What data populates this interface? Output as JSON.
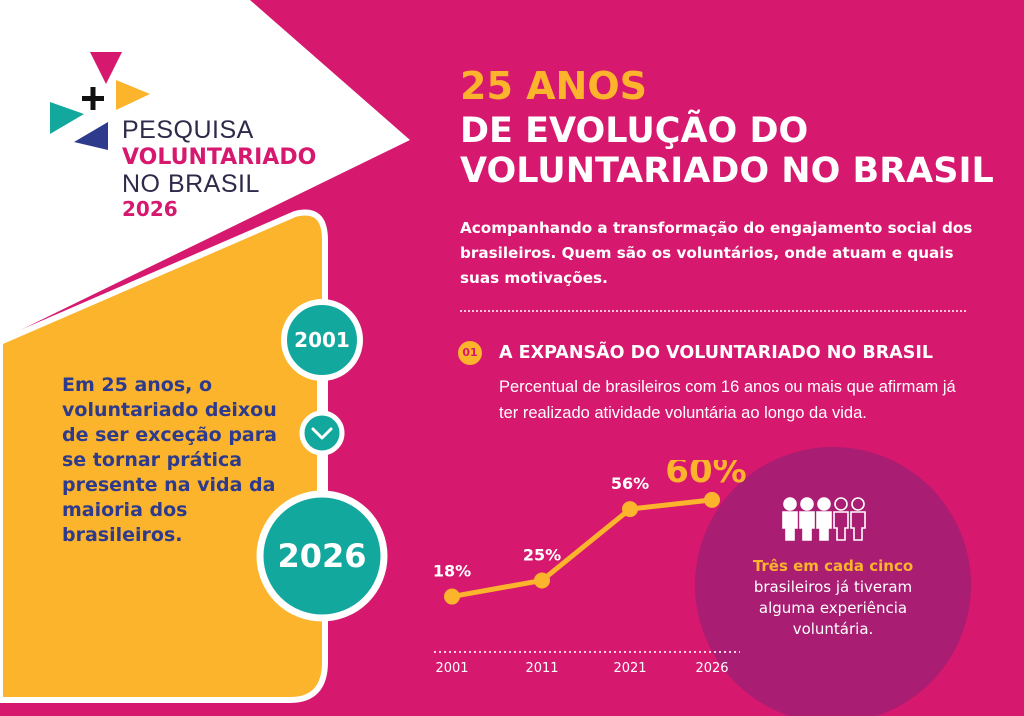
{
  "colors": {
    "background": "#d6186e",
    "yellow": "#fbb42c",
    "teal": "#13a89e",
    "navy": "#2e3a8c",
    "dark_circle": "#a91d73",
    "white": "#ffffff"
  },
  "logo": {
    "line1": "PESQUISA",
    "line2": "VOLUNTARIADO",
    "line3": "NO BRASIL",
    "year": "2026",
    "icon": "plus-triangles-logo-icon"
  },
  "side": {
    "text": "Em 25 anos, o voluntariado deixou de ser exceção para se tornar prática presente na vida da maioria dos brasileiros."
  },
  "timeline": {
    "start": "2001",
    "end": "2026",
    "arrow_icon": "chevron-down-icon"
  },
  "title": {
    "year_line": "25 ANOS",
    "line2": "DE EVOLUÇÃO DO",
    "line3": "VOLUNTARIADO NO BRASIL"
  },
  "intro": "Acompanhando a transformação do engajamento social dos brasileiros. Quem são os voluntários, onde atuam e quais suas motivações.",
  "section": {
    "number": "01",
    "title": "A EXPANSÃO DO VOLUNTARIADO NO BRASIL",
    "description": "Percentual de brasileiros com 16 anos ou mais que afirmam já ter realizado atividade voluntária ao longo da vida."
  },
  "chart_data": {
    "type": "line",
    "x": [
      "2001",
      "2011",
      "2021",
      "2026"
    ],
    "values": [
      18,
      25,
      56,
      60
    ],
    "value_labels": [
      "18%",
      "25%",
      "56%",
      "60%"
    ],
    "ylim": [
      0,
      70
    ],
    "grid": false,
    "title": "",
    "xlabel": "",
    "ylabel": ""
  },
  "highlight": {
    "icon": "people-icon",
    "people_total": 5,
    "people_filled": 3,
    "emphasis": "Três em cada cinco",
    "text": "brasileiros já tiveram alguma experiência voluntária."
  }
}
